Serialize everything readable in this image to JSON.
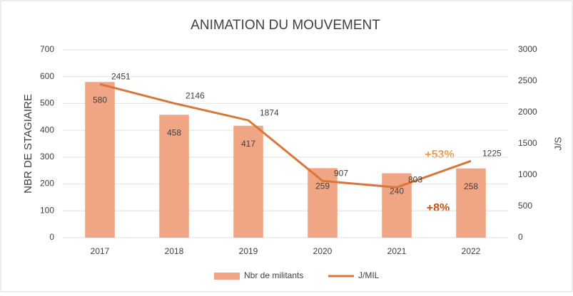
{
  "chart_data": {
    "type": "bar-line",
    "title": "ANIMATION DU MOUVEMENT",
    "y_label": "NBR DE STAGIAIRE",
    "y2_label": "J/S",
    "categories": [
      "2017",
      "2018",
      "2019",
      "2020",
      "2021",
      "2022"
    ],
    "series": [
      {
        "name": "Nbr de militants",
        "type": "bar",
        "color": "#f0a684",
        "values": [
          580,
          458,
          417,
          259,
          240,
          258
        ]
      },
      {
        "name": "J/MIL",
        "type": "line",
        "axis": "y2",
        "color": "#d9773a",
        "values": [
          2451,
          2146,
          1874,
          907,
          803,
          1225
        ]
      }
    ],
    "ylim": [
      0,
      700
    ],
    "yticks": [
      0,
      100,
      200,
      300,
      400,
      500,
      600,
      700
    ],
    "y2lim": [
      0,
      3000
    ],
    "y2ticks": [
      0,
      500,
      1000,
      1500,
      2000,
      2500,
      3000
    ],
    "annotations": [
      {
        "text": "+53%",
        "color": "#f39a4a"
      },
      {
        "text": "+8%",
        "color": "#c0550f"
      }
    ],
    "legend": "bottom"
  }
}
